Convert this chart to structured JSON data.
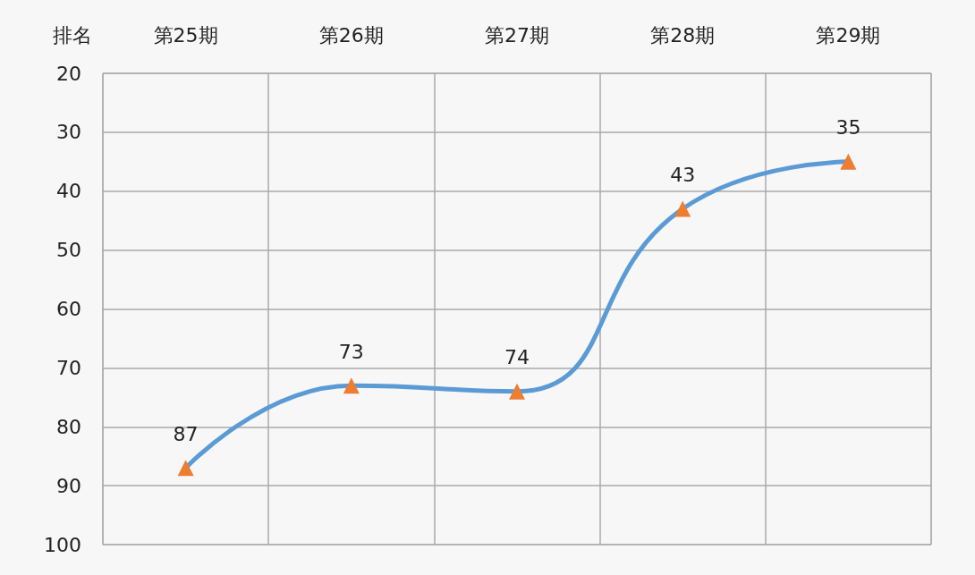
{
  "chart_data": {
    "type": "line",
    "ylabel": "排名",
    "categories": [
      "第25期",
      "第26期",
      "第27期",
      "第28期",
      "第29期"
    ],
    "series": [
      {
        "color": "#5b9bd5",
        "colors": [
          "#ed7d31",
          "#ed7d31",
          "#ed7d31",
          "#ed7d31",
          "#ed7d31"
        ],
        "values": [
          87,
          73,
          74,
          43,
          35
        ]
      }
    ],
    "ylim": [
      100,
      20
    ],
    "yticks": [
      20,
      30,
      40,
      50,
      60,
      70,
      80,
      90,
      100
    ],
    "grid": true,
    "marker": "triangle",
    "line_style": "solid",
    "data_labels": true
  }
}
